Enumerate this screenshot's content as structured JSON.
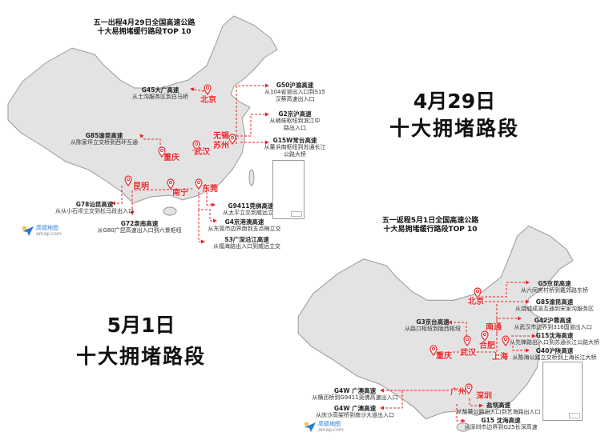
{
  "colors": {
    "accent": "#e8272a",
    "map_fill": "#e3e3e3",
    "map_stroke": "#9a9a9a"
  },
  "icons": {
    "pin": "map-pin-icon",
    "logo": "amap-logo-icon"
  },
  "map_429": {
    "title_line1": "五一出程4月29日全国高速公路",
    "title_line2": "十大易拥堵缓行路段TOP 10",
    "cities": [
      "北京",
      "无锡",
      "苏州",
      "武汉",
      "重庆",
      "昆明",
      "南宁",
      "东莞"
    ],
    "callouts": [
      {
        "road": "G45大广高速",
        "desc": [
          "从土沟服务区到白马桥"
        ]
      },
      {
        "road": "G50沪渝高速",
        "desc": [
          "从104省道出入口到S15",
          "汉蔡高速出入口"
        ]
      },
      {
        "road": "G2京沪高速",
        "desc": [
          "从峭岐枢纽到滨江中",
          "路出入口"
        ]
      },
      {
        "road": "G15W常台高速",
        "desc": [
          "从董浜南枢纽到苏通长江",
          "公路大桥"
        ]
      },
      {
        "road": "G85渝昆高速",
        "desc": [
          "从陈家坪立交桥到西环互通"
        ]
      },
      {
        "road": "G78汕昆高速",
        "desc": [
          "从从小石坝立交到松马段出入口"
        ]
      },
      {
        "road": "G72泉南高速",
        "desc": [
          "从G80广昆高速出入口到六景枢纽"
        ]
      },
      {
        "road": "G9411莞佛高速",
        "desc": [
          "从太平立交到威远立交"
        ]
      },
      {
        "road": "G4京港澳高速",
        "desc": [
          "从东莞市边界南到五点梅立交"
        ]
      },
      {
        "road": "S3广深沿江高速",
        "desc": [
          "从福海路出入口到威远立交"
        ]
      }
    ],
    "logo": {
      "name": "高德地图",
      "url_text": "amap.com"
    }
  },
  "headline_429": {
    "date": "4月29日",
    "label": "十大拥堵路段"
  },
  "headline_501": {
    "date": "5月1日",
    "label": "十大拥堵路段"
  },
  "map_501": {
    "title_line1": "五一返程5月1日全国高速公路",
    "title_line2": "十大易拥堵缓行路段TOP 10",
    "cities": [
      "北京",
      "重庆",
      "武汉",
      "合肥",
      "南通",
      "上海",
      "广州",
      "深圳"
    ],
    "callouts": [
      {
        "road": "G5京昆高速",
        "desc": [
          "从六间房村桥到戴郊路东桥"
        ]
      },
      {
        "road": "G85渝昆高速",
        "desc": [
          "从烧城成渝互通到宋家沟服务区"
        ]
      },
      {
        "road": "G42沪蓉高速",
        "desc": [
          "从武汉市边界到316国道出入口"
        ]
      },
      {
        "road": "G15沈海高速",
        "desc": [
          "从先锋路出入口到苏通长江公路大桥"
        ]
      },
      {
        "road": "G40沪陕高速",
        "desc": [
          "从陈海公路立交桥到上海长江大桥"
        ]
      },
      {
        "road": "G3京台高速",
        "desc": [
          "从路口枢纽到陇西枢纽"
        ]
      },
      {
        "road": "G4W 广澳高速",
        "desc": [
          "从横沥桥到G9411莞佛高速出入口"
        ]
      },
      {
        "road": "G4W 广澳高速",
        "desc": [
          "从庆沙高架桥到南沙大道出入口"
        ]
      },
      {
        "road": "盐坝高速",
        "desc": [
          "从盐葵公路出入口到艺海路出入口"
        ]
      },
      {
        "road": "G15 沈海高速",
        "desc": [
          "从深圳市边界到G25长深高速"
        ]
      }
    ],
    "logo": {
      "name": "高德地图",
      "url_text": "amap.com"
    }
  }
}
